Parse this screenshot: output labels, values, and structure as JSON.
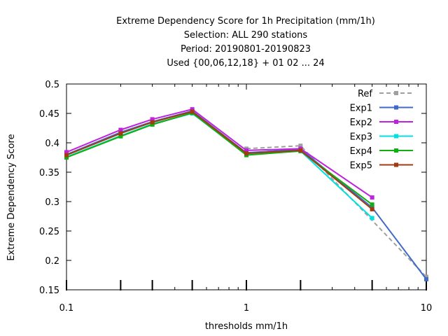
{
  "chart_data": {
    "type": "line",
    "title_lines": [
      "Extreme Dependency Score  for 1h Precipitation (mm/1h)",
      "Selection: ALL    290 stations",
      "Period: 20190801-20190823",
      "Used {00,06,12,18} + 01 02 ... 24"
    ],
    "xlabel": "thresholds mm/1h",
    "ylabel": "Extreme Dependency Score",
    "x_scale": "log",
    "xlim": [
      0.1,
      10
    ],
    "ylim": [
      0.15,
      0.5
    ],
    "x_ticks": [
      0.1,
      1,
      10
    ],
    "x_tick_labels": [
      "0.1",
      "1",
      "10"
    ],
    "y_ticks": [
      0.15,
      0.2,
      0.25,
      0.3,
      0.35,
      0.4,
      0.45,
      0.5
    ],
    "y_tick_labels": [
      "0.15",
      "0.2",
      "0.25",
      "0.3",
      "0.35",
      "0.4",
      "0.45",
      "0.5"
    ],
    "threshold_marks": [
      0.1,
      0.2,
      0.3,
      0.5,
      1,
      2,
      5,
      10
    ],
    "legend_position": "top-right",
    "grid": false,
    "series": [
      {
        "name": "Ref",
        "color": "#a0a0a0",
        "dashed": true,
        "x": [
          1,
          2,
          10
        ],
        "y": [
          0.39,
          0.395,
          0.172
        ]
      },
      {
        "name": "Exp1",
        "color": "#4169c8",
        "dashed": false,
        "x": [
          0.1,
          0.2,
          0.3,
          0.5,
          1,
          2,
          5,
          10
        ],
        "y": [
          0.38,
          0.418,
          0.436,
          0.454,
          0.383,
          0.389,
          0.29,
          0.168
        ]
      },
      {
        "name": "Exp2",
        "color": "#c020e0",
        "dashed": false,
        "x": [
          0.1,
          0.2,
          0.3,
          0.5,
          1,
          2,
          5
        ],
        "y": [
          0.384,
          0.422,
          0.44,
          0.457,
          0.387,
          0.39,
          0.307
        ]
      },
      {
        "name": "Exp3",
        "color": "#00e0e0",
        "dashed": false,
        "x": [
          0.1,
          0.2,
          0.3,
          0.5,
          1,
          2,
          5
        ],
        "y": [
          0.376,
          0.412,
          0.432,
          0.45,
          0.38,
          0.386,
          0.272
        ]
      },
      {
        "name": "Exp4",
        "color": "#10b010",
        "dashed": false,
        "x": [
          0.1,
          0.2,
          0.3,
          0.5,
          1,
          2,
          5
        ],
        "y": [
          0.375,
          0.411,
          0.431,
          0.451,
          0.379,
          0.386,
          0.295
        ]
      },
      {
        "name": "Exp5",
        "color": "#a03c10",
        "dashed": false,
        "x": [
          0.1,
          0.2,
          0.3,
          0.5,
          1,
          2,
          5
        ],
        "y": [
          0.379,
          0.416,
          0.435,
          0.453,
          0.382,
          0.387,
          0.287
        ]
      }
    ]
  }
}
